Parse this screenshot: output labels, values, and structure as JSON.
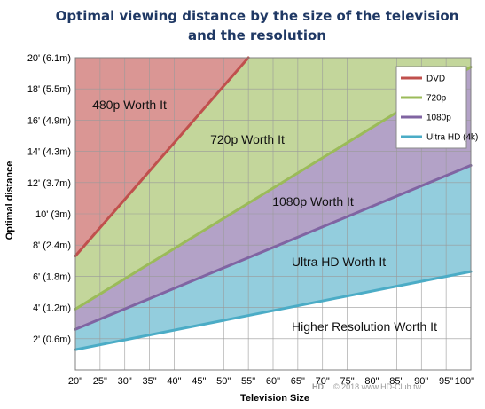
{
  "chart_data": {
    "type": "area",
    "title_line1": "Optimal viewing distance by the size of the television",
    "title_line2": "and the resolution",
    "xlabel": "Television Size",
    "ylabel": "Optimal distance",
    "x_ticks": [
      "20\"",
      "25\"",
      "30\"",
      "35\"",
      "40\"",
      "45\"",
      "50\"",
      "55\"",
      "60\"",
      "65\"",
      "70\"",
      "75\"",
      "80\"",
      "85\"",
      "90\"",
      "95\"",
      "100\""
    ],
    "y_ticks": [
      "2' (0.6m)",
      "4' (1.2m)",
      "6' (1.8m)",
      "8' (2.4m)",
      "10' (3m)",
      "12' (3.7m)",
      "14' (4.3m)",
      "16' (4.9m)",
      "18' (5.5m)",
      "20' (6.1m)"
    ],
    "xlim": [
      20,
      100
    ],
    "ylim": [
      0,
      20
    ],
    "series": [
      {
        "name": "DVD",
        "color": "#c0504d",
        "fill": "#da9694",
        "x": [
          20,
          55
        ],
        "y": [
          7.3,
          20
        ]
      },
      {
        "name": "720p",
        "color": "#9bbb59",
        "fill": "#c3d69b",
        "x": [
          20,
          100
        ],
        "y": [
          3.9,
          19.4
        ]
      },
      {
        "name": "1080p",
        "color": "#8064a2",
        "fill": "#b3a2c7",
        "x": [
          20,
          100
        ],
        "y": [
          2.6,
          13.1
        ]
      },
      {
        "name": "Ultra HD (4k)",
        "color": "#4bacc6",
        "fill": "#93cddd",
        "x": [
          20,
          100
        ],
        "y": [
          1.3,
          6.3
        ]
      }
    ],
    "region_labels": [
      "480p Worth It",
      "720p Worth It",
      "1080p Worth It",
      "Ultra HD Worth It",
      "Higher Resolution Worth It"
    ],
    "legend_position": "top-right",
    "grid": true
  },
  "watermark": "© 2018 www.HD-Club.tw"
}
